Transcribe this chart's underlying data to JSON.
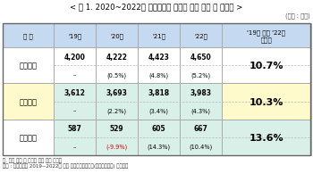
{
  "title": "< 표 1. 2020~2022년 상용근로자 연평균 임금 수준 및 인상률 >",
  "unit": "(단위 : 만원)",
  "col_headers": [
    "구 분",
    "'19년",
    "'20년",
    "'21년",
    "'22년",
    "'19년 대비 '22년\n증가율"
  ],
  "rows": [
    {
      "label": "임금종액",
      "values": [
        "4,200",
        "4,222",
        "4,423",
        "4,650"
      ],
      "rates": [
        "–",
        "(0.5%)",
        "(4.8%)",
        "(5.2%)"
      ],
      "growth": "10.7%",
      "label_bg": "#ffffff",
      "data_bg": "#ffffff",
      "growth_bg": "#ffffff"
    },
    {
      "label": "정액급여",
      "values": [
        "3,612",
        "3,693",
        "3,818",
        "3,983"
      ],
      "rates": [
        "–",
        "(2.2%)",
        "(3.4%)",
        "(4.3%)"
      ],
      "growth": "10.3%",
      "label_bg": "#fffacc",
      "data_bg": "#d9f0e8",
      "growth_bg": "#fffacc"
    },
    {
      "label": "특별급여",
      "values": [
        "587",
        "529",
        "605",
        "667"
      ],
      "rates": [
        "–",
        "(-9.9%)",
        "(14.3%)",
        "(10.4%)"
      ],
      "growth": "13.6%",
      "label_bg": "#ffffff",
      "data_bg": "#d9f0e8",
      "growth_bg": "#d9f0e8"
    }
  ],
  "note1": "주. 괄호 안은 각 연도별 전년 대비 증가율",
  "note2": "자료 : 고용노동부 2019~2022년 누계 사업체노동력조사(근로실태부문) 원시자료",
  "header_bg": "#c5d9f1",
  "border_color": "#aaaaaa",
  "special_rate_color": "#cc0000"
}
